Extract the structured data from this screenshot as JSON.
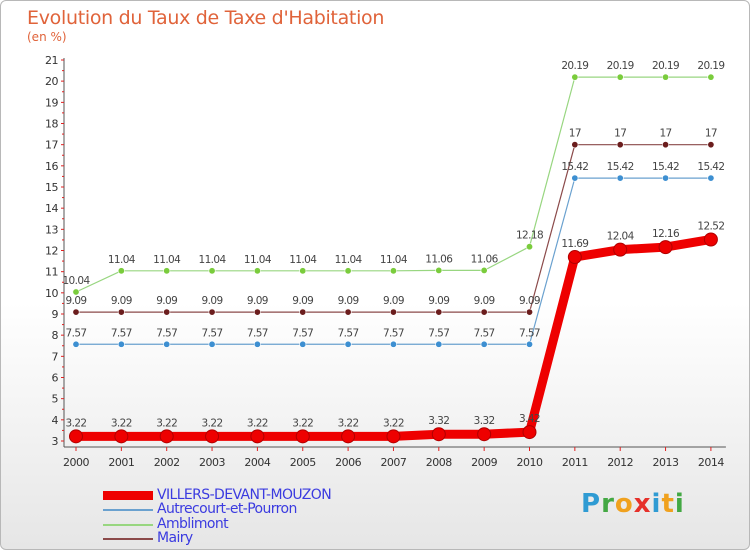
{
  "title": "Evolution du Taux de Taxe d'Habitation",
  "unit": "(en %)",
  "brand": {
    "letters": [
      {
        "ch": "P",
        "color": "#2f9bd3"
      },
      {
        "ch": "r",
        "color": "#43a843"
      },
      {
        "ch": "o",
        "color": "#f0a11e"
      },
      {
        "ch": "x",
        "color": "#e6302a"
      },
      {
        "ch": "i",
        "color": "#2f9bd3"
      },
      {
        "ch": "t",
        "color": "#f0a11e"
      },
      {
        "ch": "i",
        "color": "#43a843"
      }
    ]
  },
  "chart_data": {
    "type": "line",
    "x": [
      "2000",
      "2001",
      "2002",
      "2003",
      "2004",
      "2005",
      "2006",
      "2007",
      "2008",
      "2009",
      "2010",
      "2011",
      "2012",
      "2013",
      "2014"
    ],
    "ylim": [
      3,
      21
    ],
    "yticks": [
      "3",
      "4",
      "5",
      "6",
      "7",
      "8",
      "9",
      "10",
      "11",
      "12",
      "13",
      "14",
      "15",
      "16",
      "17",
      "18",
      "19",
      "20",
      "21"
    ],
    "grid": false,
    "legend_position": "bottom-left",
    "series": [
      {
        "name": "VILLERS-DEVANT-MOUZON",
        "color": "#ee0000",
        "emphasis": true,
        "values": [
          3.22,
          3.22,
          3.22,
          3.22,
          3.22,
          3.22,
          3.22,
          3.22,
          3.32,
          3.32,
          3.42,
          11.69,
          12.04,
          12.16,
          12.52
        ],
        "labels": [
          "3.22",
          "3.22",
          "3.22",
          "3.22",
          "3.22",
          "3.22",
          "3.22",
          "3.22",
          "3.32",
          "3.32",
          "3.42",
          "11.69",
          "12.04",
          "12.16",
          "12.52"
        ]
      },
      {
        "name": "Autrecourt-et-Pourron",
        "color": "#6aa1cf",
        "point_color": "#3d8fd1",
        "values": [
          7.57,
          7.57,
          7.57,
          7.57,
          7.57,
          7.57,
          7.57,
          7.57,
          7.57,
          7.57,
          7.57,
          15.42,
          15.42,
          15.42,
          15.42
        ],
        "labels": [
          "7.57",
          "7.57",
          "7.57",
          "7.57",
          "7.57",
          "7.57",
          "7.57",
          "7.57",
          "7.57",
          "7.57",
          "7.57",
          "15.42",
          "15.42",
          "15.42",
          "15.42"
        ]
      },
      {
        "name": "Amblimont",
        "color": "#98d680",
        "point_color": "#7acc3c",
        "values": [
          10.04,
          11.04,
          11.04,
          11.04,
          11.04,
          11.04,
          11.04,
          11.04,
          11.06,
          11.06,
          12.18,
          20.19,
          20.19,
          20.19,
          20.19
        ],
        "labels": [
          "10.04",
          "11.04",
          "11.04",
          "11.04",
          "11.04",
          "11.04",
          "11.04",
          "11.04",
          "11.06",
          "11.06",
          "12.18",
          "20.19",
          "20.19",
          "20.19",
          "20.19"
        ]
      },
      {
        "name": "Mairy",
        "color": "#8b4a4a",
        "point_color": "#6b1d1d",
        "values": [
          9.09,
          9.09,
          9.09,
          9.09,
          9.09,
          9.09,
          9.09,
          9.09,
          9.09,
          9.09,
          9.09,
          17,
          17,
          17,
          17
        ],
        "labels": [
          "9.09",
          "9.09",
          "9.09",
          "9.09",
          "9.09",
          "9.09",
          "9.09",
          "9.09",
          "9.09",
          "9.09",
          "9.09",
          "17",
          "17",
          "17",
          "17"
        ]
      }
    ]
  }
}
